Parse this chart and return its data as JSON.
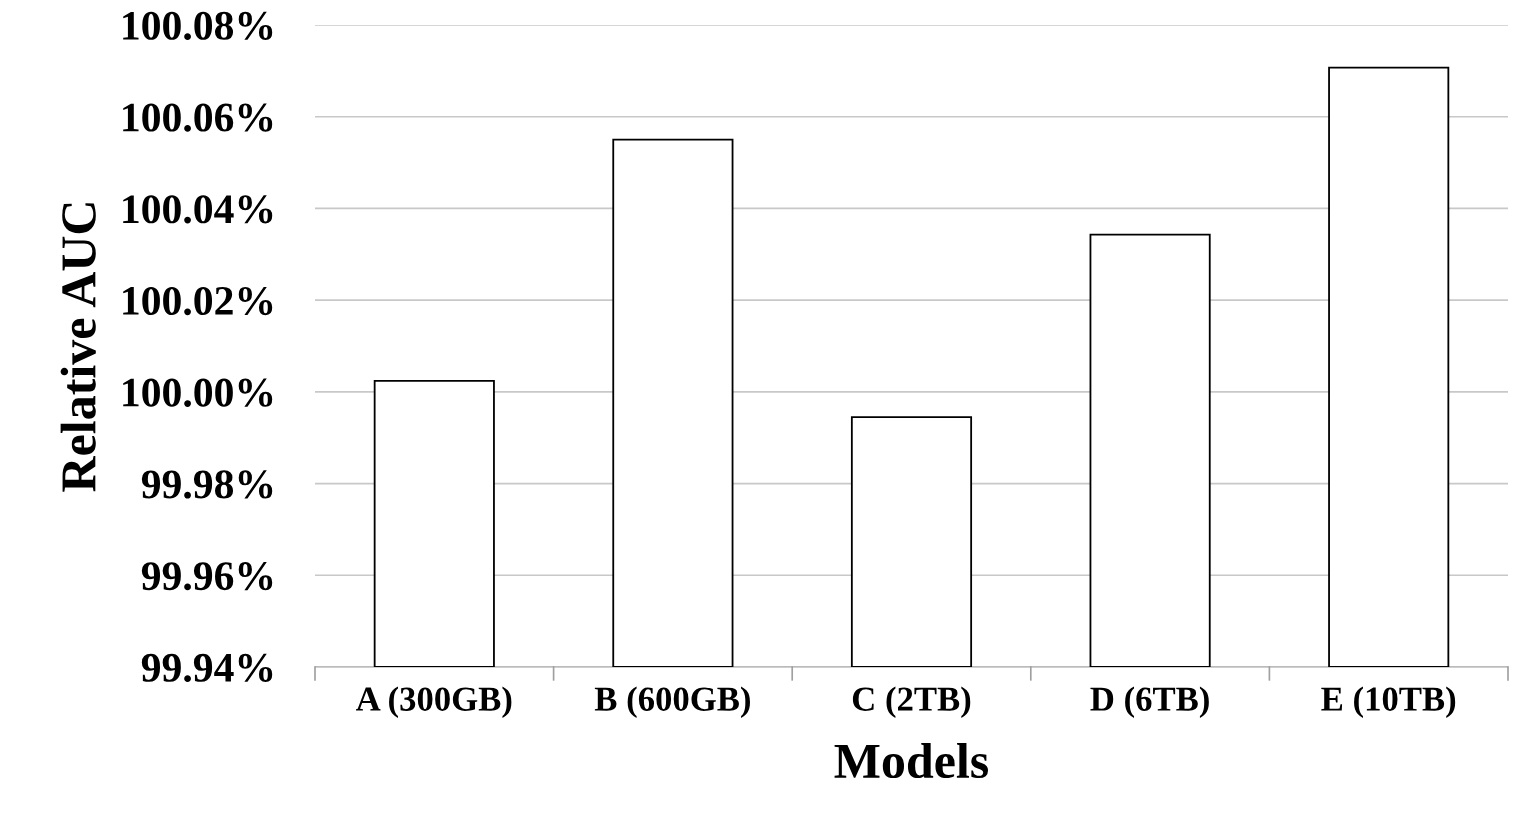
{
  "chart_data": {
    "type": "bar",
    "xlabel": "Models",
    "ylabel": "Relative AUC",
    "categories": [
      "A (300GB)",
      "B (600GB)",
      "C (2TB)",
      "D (6TB)",
      "E (10TB)"
    ],
    "values": [
      100.0024,
      100.055,
      99.9945,
      100.0343,
      100.0707
    ],
    "color": "#ffffff",
    "ylim": [
      99.94,
      100.08
    ],
    "yticks": [
      {
        "value": 99.94,
        "label": "99.94%"
      },
      {
        "value": 99.96,
        "label": "99.96%"
      },
      {
        "value": 99.98,
        "label": "99.98%"
      },
      {
        "value": 100.0,
        "label": "100.00%"
      },
      {
        "value": 100.02,
        "label": "100.02%"
      },
      {
        "value": 100.04,
        "label": "100.04%"
      },
      {
        "value": 100.06,
        "label": "100.06%"
      },
      {
        "value": 100.08,
        "label": "100.08%"
      }
    ],
    "grid": "y"
  }
}
